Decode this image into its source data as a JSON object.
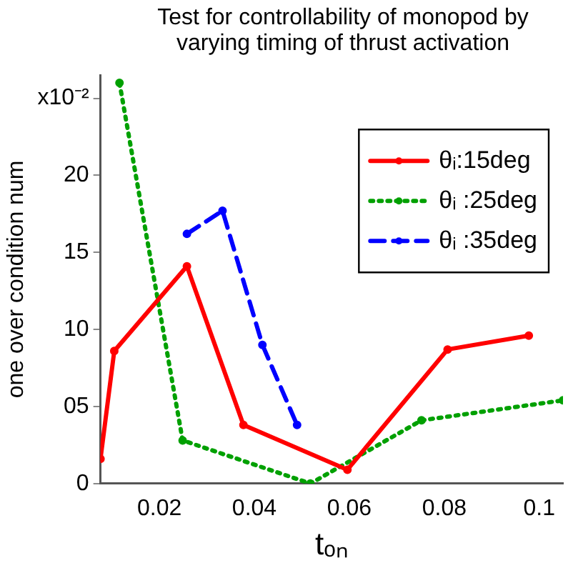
{
  "chart_data": {
    "type": "line",
    "title": "Test for controllability of monopod by varying timing of thrust activation",
    "xlabel": "tₒₙ",
    "ylabel": "one over condition num",
    "xlim": [
      0.0076,
      0.105
    ],
    "xticks": [
      0.02,
      0.04,
      0.06,
      0.08,
      {
        "value": 0.1,
        "label": "0.1"
      }
    ],
    "ylim": [
      0,
      26.5
    ],
    "yticks": [
      0,
      {
        "value": 5,
        "label": "05"
      },
      10,
      15,
      20,
      {
        "value": 25,
        "label": "x10⁻²"
      }
    ],
    "grid": false,
    "legend": "top right",
    "marker": "circle",
    "series": [
      {
        "name": "θᵢ:15deg",
        "color": "#ff0000",
        "line_style": "solid",
        "x": [
          0.0076,
          0.0105,
          0.0258,
          0.0377,
          0.0596,
          0.0807,
          0.0978
        ],
        "values": [
          1.6,
          8.6,
          14.1,
          3.8,
          0.9,
          8.7,
          9.6
        ]
      },
      {
        "name": "θᵢ :25deg",
        "color": "#00a000",
        "line_style": "dotted",
        "x": [
          0.0116,
          0.0249,
          0.0518,
          0.0752,
          0.105
        ],
        "values": [
          26,
          2.8,
          0,
          4.1,
          5.4
        ]
      },
      {
        "name": "θᵢ :35deg",
        "color": "#0000ff",
        "line_style": "dashed",
        "x": [
          0.0258,
          0.0333,
          0.0417,
          0.049
        ],
        "values": [
          16.2,
          17.7,
          9.0,
          3.8
        ]
      }
    ]
  }
}
